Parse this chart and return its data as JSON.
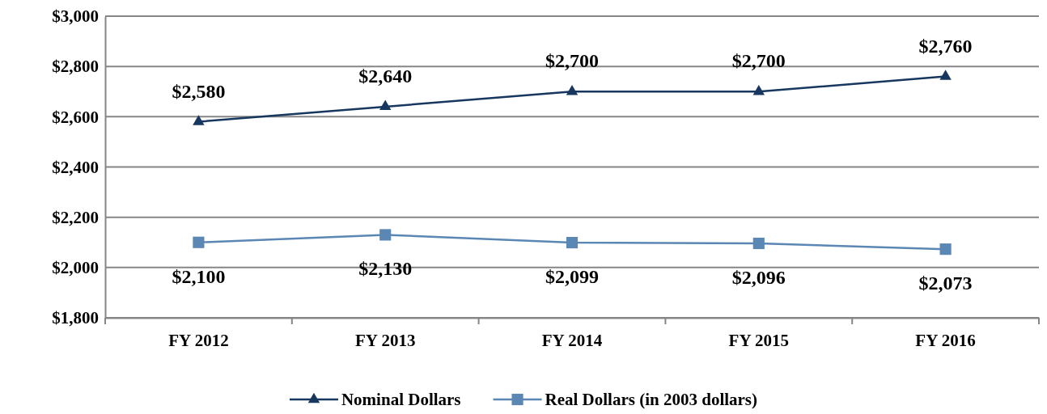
{
  "chart_data": {
    "type": "line",
    "categories": [
      "FY 2012",
      "FY 2013",
      "FY 2014",
      "FY 2015",
      "FY 2016"
    ],
    "series": [
      {
        "name": "Nominal Dollars",
        "color": "#17375e",
        "marker": "triangle",
        "values": [
          2580,
          2640,
          2700,
          2700,
          2760
        ],
        "value_labels": [
          "$2,580",
          "$2,640",
          "$2,700",
          "$2,700",
          "$2,760"
        ]
      },
      {
        "name": "Real Dollars (in 2003 dollars)",
        "color": "#5b87b5",
        "marker": "square",
        "values": [
          2100,
          2130,
          2099,
          2096,
          2073
        ],
        "value_labels": [
          "$2,100",
          "$2,130",
          "$2,099",
          "$2,096",
          "$2,073"
        ]
      }
    ],
    "ylim": [
      1800,
      3000
    ],
    "yticks": [
      {
        "value": 1800,
        "label": "$1,800"
      },
      {
        "value": 2000,
        "label": "$2,000"
      },
      {
        "value": 2200,
        "label": "$2,200"
      },
      {
        "value": 2400,
        "label": "$2,400"
      },
      {
        "value": 2600,
        "label": "$2,600"
      },
      {
        "value": 2800,
        "label": "$2,800"
      },
      {
        "value": 3000,
        "label": "$3,000"
      }
    ],
    "grid": "y",
    "legend": "bottom",
    "line_style": "solid"
  }
}
